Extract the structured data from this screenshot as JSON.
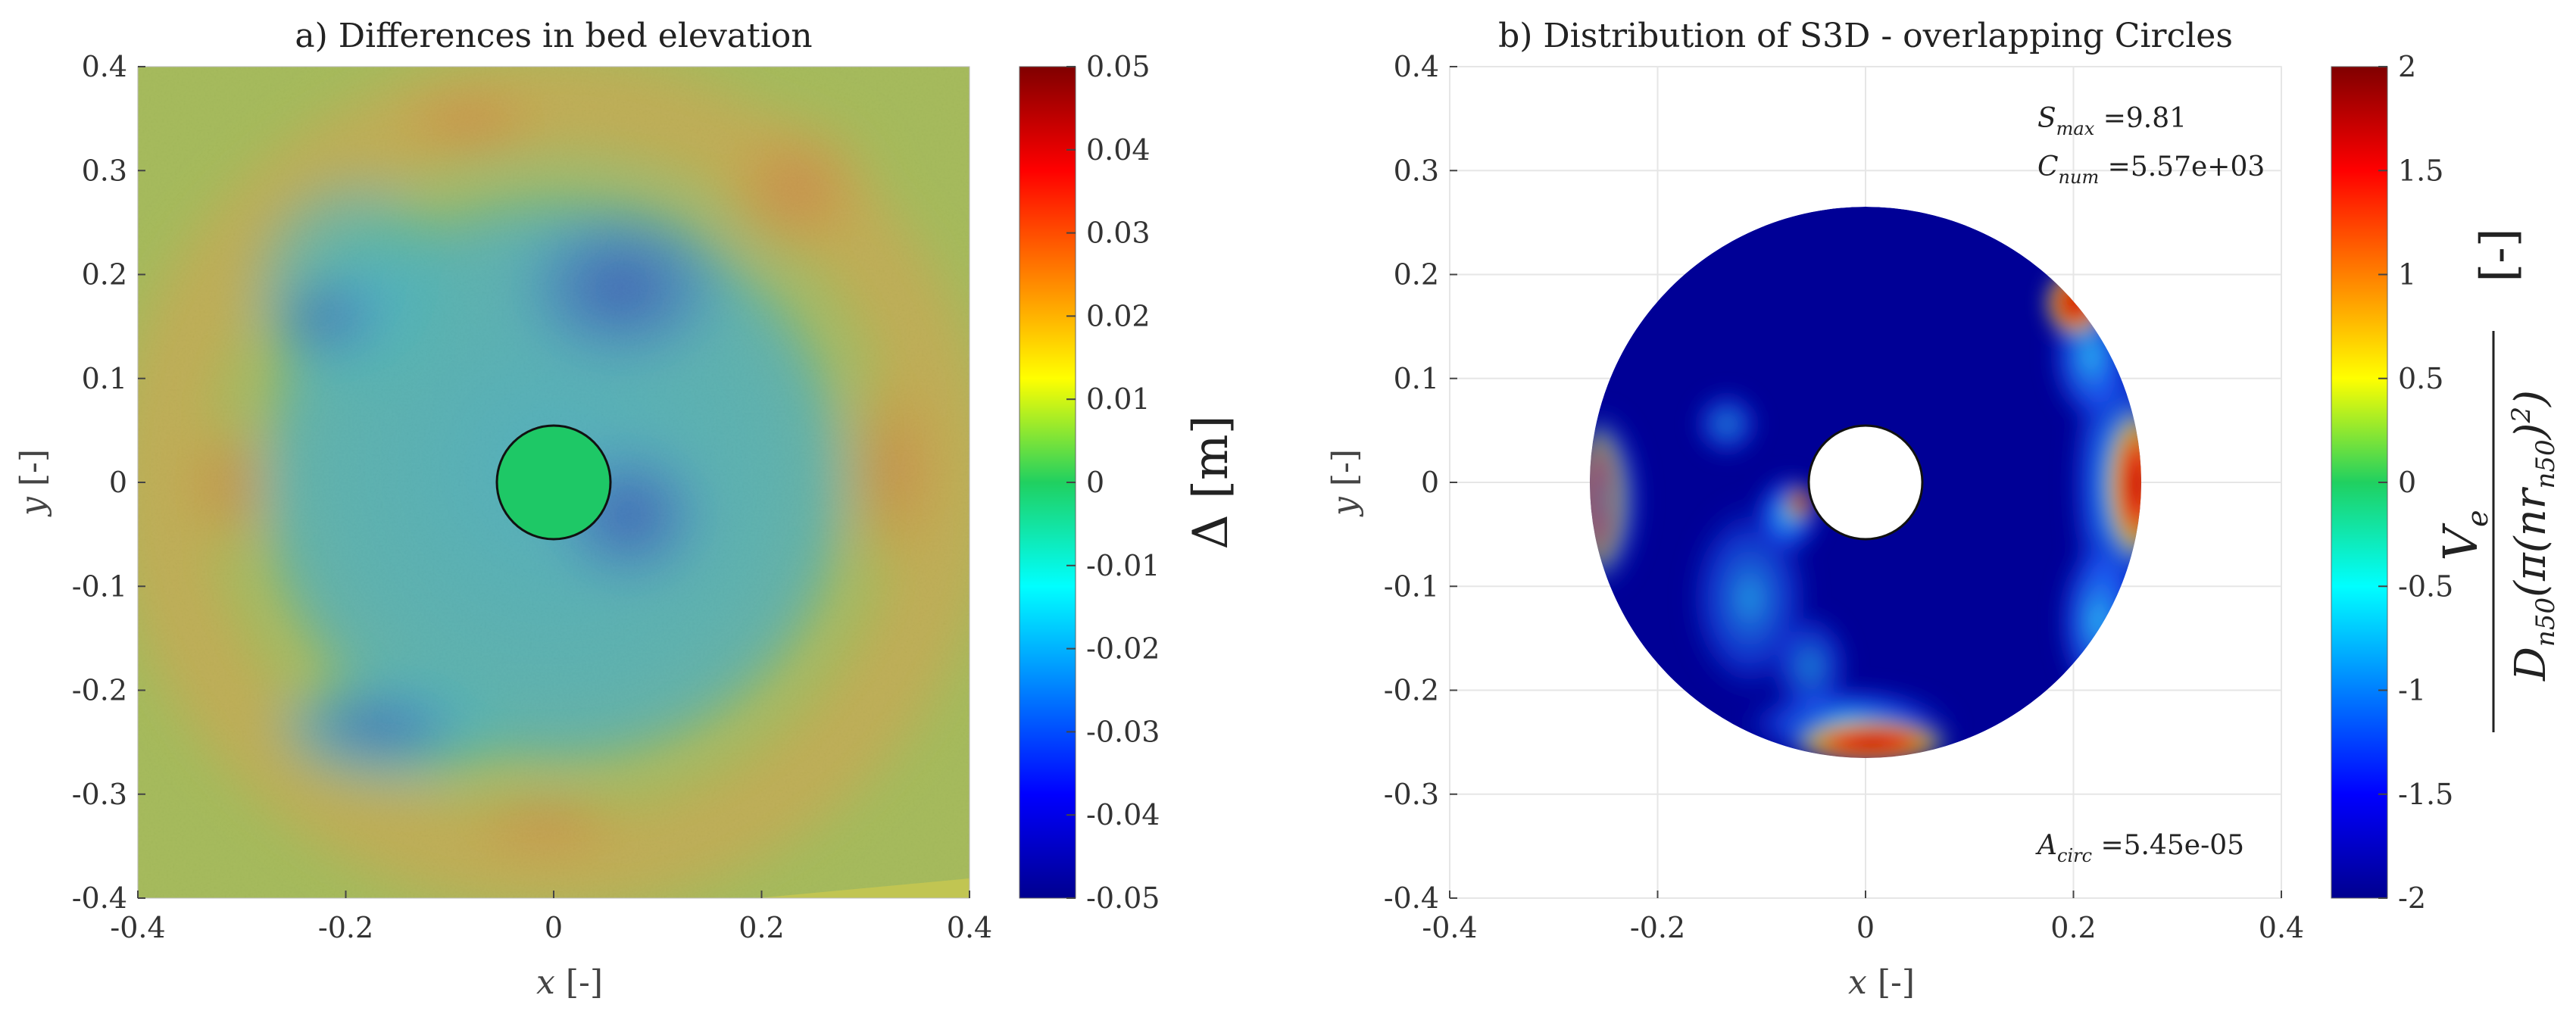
{
  "chart_data": [
    {
      "type": "heatmap",
      "title": "a) Differences in bed elevation",
      "xlabel": "x [-]",
      "ylabel": "y [-]",
      "xlim": [
        -0.4,
        0.4
      ],
      "ylim": [
        -0.4,
        0.4
      ],
      "xticks": [
        "-0.4",
        "-0.2",
        "0",
        "0.2",
        "0.4"
      ],
      "yticks": [
        "0.4",
        "0.3",
        "0.2",
        "0.1",
        "0",
        "-0.1",
        "-0.2",
        "-0.3",
        "-0.4"
      ],
      "colorbar": {
        "label": "Δ [m]",
        "range": [
          -0.05,
          0.05
        ],
        "ticks": [
          "0.05",
          "0.04",
          "0.03",
          "0.02",
          "0.01",
          "0",
          "-0.01",
          "-0.02",
          "-0.03",
          "-0.04",
          "-0.05"
        ]
      },
      "pile": {
        "center": [
          0,
          0
        ],
        "radius": 0.055
      }
    },
    {
      "type": "heatmap",
      "title": "b) Distribution of S3D - overlapping Circles",
      "xlabel": "x [-]",
      "ylabel": "y [-]",
      "xlim": [
        -0.4,
        0.4
      ],
      "ylim": [
        -0.4,
        0.4
      ],
      "xticks": [
        "-0.4",
        "-0.2",
        "0",
        "0.2",
        "0.4"
      ],
      "yticks": [
        "0.4",
        "0.3",
        "0.2",
        "0.1",
        "0",
        "-0.1",
        "-0.2",
        "-0.3",
        "-0.4"
      ],
      "domain_radius": 0.265,
      "pile": {
        "center": [
          0,
          0
        ],
        "radius": 0.055
      },
      "annotations": {
        "smax": {
          "sym": "S",
          "sub": "max",
          "val": " =9.81"
        },
        "cnum": {
          "sym": "C",
          "sub": "num",
          "val": " =5.57e+03"
        },
        "acirc": {
          "sym": "A",
          "sub": "circ",
          "val": " =5.45e-05"
        }
      },
      "colorbar": {
        "label_text": "Ve / (Dn50 (π (n r_n50)²))  [-]",
        "bracket": "[-]",
        "range": [
          -2,
          2
        ],
        "ticks": [
          "2",
          "1.5",
          "1",
          "0.5",
          "0",
          "-0.5",
          "-1",
          "-1.5",
          "-2"
        ]
      }
    }
  ]
}
